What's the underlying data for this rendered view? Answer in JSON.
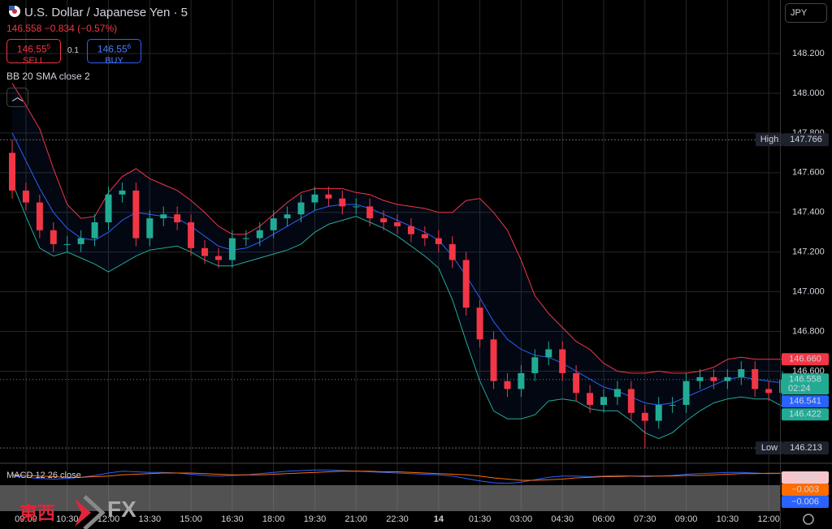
{
  "header": {
    "symbol": "U.S. Dollar / Japanese Yen · 5",
    "last": "146.558",
    "change": "−0.834 (−0.57%)",
    "sell": {
      "price": "146.55",
      "pip": "5",
      "label": "SELL"
    },
    "spread": "0.1",
    "buy": {
      "price": "146.55",
      "pip": "6",
      "label": "BUY"
    },
    "indicator": "BB 20 SMA close 2",
    "currency": "JPY"
  },
  "chart_data": {
    "type": "candlestick",
    "categories": [
      null,
      "09:00",
      null,
      null,
      "10:30",
      null,
      null,
      "12:00",
      null,
      null,
      "13:30",
      null,
      null,
      "15:00",
      null,
      null,
      "16:30",
      null,
      null,
      "18:00",
      null,
      null,
      "19:30",
      null,
      null,
      "21:00",
      null,
      null,
      "22:30",
      null,
      null,
      "14",
      null,
      null,
      "01:30",
      null,
      null,
      "03:00",
      null,
      null,
      "04:30",
      null,
      null,
      "06:00",
      null,
      null,
      "07:30",
      null,
      null,
      "09:00",
      null,
      null,
      "10:30",
      null,
      null,
      "12:00",
      null
    ],
    "open": [
      147.7,
      147.51,
      147.45,
      147.31,
      147.24,
      147.24,
      147.27,
      147.35,
      147.49,
      147.51,
      147.27,
      147.37,
      147.39,
      147.35,
      147.22,
      147.18,
      147.16,
      147.27,
      147.27,
      147.31,
      147.37,
      147.39,
      147.45,
      147.49,
      147.47,
      147.43,
      147.43,
      147.37,
      147.35,
      147.33,
      147.29,
      147.27,
      147.24,
      147.16,
      146.92,
      146.76,
      146.55,
      146.51,
      146.59,
      146.67,
      146.71,
      146.59,
      146.49,
      146.43,
      146.47,
      146.51,
      146.39,
      146.35,
      146.43,
      146.43,
      146.55,
      146.57,
      146.55,
      146.57,
      146.61,
      146.51,
      146.49
    ],
    "high": [
      147.766,
      147.55,
      147.49,
      147.35,
      147.28,
      147.31,
      147.39,
      147.53,
      147.55,
      147.55,
      147.41,
      147.43,
      147.43,
      147.39,
      147.26,
      147.22,
      147.31,
      147.31,
      147.35,
      147.41,
      147.43,
      147.49,
      147.53,
      147.53,
      147.51,
      147.47,
      147.47,
      147.41,
      147.39,
      147.37,
      147.33,
      147.31,
      147.28,
      147.2,
      146.96,
      146.8,
      146.59,
      146.63,
      146.71,
      146.75,
      146.75,
      146.63,
      146.53,
      146.51,
      146.55,
      146.55,
      146.43,
      146.47,
      146.47,
      146.59,
      146.61,
      146.61,
      146.61,
      146.65,
      146.65,
      146.55,
      146.6
    ],
    "low": [
      147.47,
      147.41,
      147.27,
      147.2,
      147.2,
      147.2,
      147.23,
      147.31,
      147.45,
      147.23,
      147.23,
      147.33,
      147.31,
      147.18,
      147.14,
      147.12,
      147.12,
      147.23,
      147.23,
      147.27,
      147.33,
      147.35,
      147.41,
      147.43,
      147.39,
      147.39,
      147.33,
      147.31,
      147.29,
      147.25,
      147.23,
      147.2,
      147.12,
      146.88,
      146.72,
      146.51,
      146.47,
      146.47,
      146.55,
      146.63,
      146.55,
      146.45,
      146.39,
      146.39,
      146.43,
      146.35,
      146.213,
      146.31,
      146.39,
      146.39,
      146.51,
      146.51,
      146.51,
      146.53,
      146.47,
      146.45,
      146.45
    ],
    "close": [
      147.51,
      147.45,
      147.31,
      147.24,
      147.24,
      147.27,
      147.35,
      147.49,
      147.51,
      147.27,
      147.37,
      147.39,
      147.35,
      147.22,
      147.18,
      147.16,
      147.27,
      147.27,
      147.31,
      147.37,
      147.39,
      147.45,
      147.49,
      147.47,
      147.43,
      147.43,
      147.37,
      147.35,
      147.33,
      147.29,
      147.27,
      147.24,
      147.16,
      146.92,
      146.76,
      146.55,
      146.51,
      146.59,
      146.67,
      146.71,
      146.59,
      146.49,
      146.43,
      146.47,
      146.51,
      146.39,
      146.35,
      146.43,
      146.43,
      146.55,
      146.57,
      146.55,
      146.57,
      146.61,
      146.51,
      146.49,
      146.558
    ],
    "up_color": "#22ab94",
    "down_color": "#f23645",
    "bollinger": {
      "upper": [
        148.05,
        147.94,
        147.82,
        147.62,
        147.44,
        147.37,
        147.38,
        147.5,
        147.58,
        147.62,
        147.57,
        147.54,
        147.51,
        147.46,
        147.4,
        147.33,
        147.29,
        147.29,
        147.33,
        147.39,
        147.45,
        147.5,
        147.52,
        147.52,
        147.52,
        147.5,
        147.49,
        147.46,
        147.44,
        147.43,
        147.42,
        147.4,
        147.4,
        147.46,
        147.47,
        147.4,
        147.31,
        147.16,
        146.98,
        146.89,
        146.82,
        146.75,
        146.71,
        146.64,
        146.6,
        146.59,
        146.59,
        146.6,
        146.59,
        146.59,
        146.6,
        146.62,
        146.66,
        146.67,
        146.66,
        146.66,
        146.66
      ],
      "basis": [
        147.8,
        147.66,
        147.52,
        147.4,
        147.32,
        147.27,
        147.26,
        147.3,
        147.36,
        147.4,
        147.39,
        147.38,
        147.37,
        147.33,
        147.28,
        147.23,
        147.21,
        147.22,
        147.25,
        147.29,
        147.33,
        147.37,
        147.41,
        147.43,
        147.44,
        147.44,
        147.42,
        147.39,
        147.36,
        147.33,
        147.3,
        147.26,
        147.18,
        147.08,
        146.97,
        146.85,
        146.76,
        146.71,
        146.68,
        146.67,
        146.64,
        146.6,
        146.56,
        146.52,
        146.5,
        146.47,
        146.44,
        146.43,
        146.44,
        146.47,
        146.5,
        146.53,
        146.56,
        146.57,
        146.56,
        146.55,
        146.541
      ],
      "lower": [
        147.55,
        147.38,
        147.22,
        147.18,
        147.2,
        147.17,
        147.14,
        147.1,
        147.14,
        147.18,
        147.21,
        147.22,
        147.23,
        147.2,
        147.16,
        147.13,
        147.13,
        147.15,
        147.17,
        147.19,
        147.21,
        147.24,
        147.3,
        147.34,
        147.36,
        147.38,
        147.35,
        147.32,
        147.28,
        147.23,
        147.18,
        147.12,
        146.96,
        146.75,
        146.55,
        146.4,
        146.36,
        146.36,
        146.38,
        146.45,
        146.46,
        146.45,
        146.41,
        146.4,
        146.4,
        146.35,
        146.29,
        146.26,
        146.29,
        146.35,
        146.4,
        146.44,
        146.46,
        146.47,
        146.46,
        146.46,
        146.422
      ],
      "upper_color": "#f23645",
      "basis_color": "#2962ff",
      "lower_color": "#22ab94"
    },
    "ylim": [
      146.14,
      148.47
    ],
    "yticks": [
      {
        "value": 146.6,
        "label": "146.600"
      },
      {
        "value": 146.8,
        "label": "146.800"
      },
      {
        "value": 147.0,
        "label": "147.000"
      },
      {
        "value": 147.2,
        "label": "147.200"
      },
      {
        "value": 147.4,
        "label": "147.400"
      },
      {
        "value": 147.6,
        "label": "147.600"
      },
      {
        "value": 147.8,
        "label": "147.800"
      },
      {
        "value": 148.0,
        "label": "148.000"
      },
      {
        "value": 148.2,
        "label": "148.200"
      }
    ],
    "grid": true,
    "high_marker": {
      "label": "High",
      "value": 147.766,
      "value_label": "147.766"
    },
    "low_marker": {
      "label": "Low",
      "value": 146.213,
      "value_label": "146.213"
    },
    "price_badges": [
      {
        "value": 146.66,
        "label": "146.660",
        "color": "#f23645"
      },
      {
        "value": 146.558,
        "label": "146.558",
        "color": "#22ab94",
        "countdown": "02:24"
      },
      {
        "value": 146.541,
        "label": "146.541",
        "color": "#2962ff"
      },
      {
        "value": 146.422,
        "label": "146.422",
        "color": "#22ab94"
      }
    ],
    "macd": {
      "title": "MACD 12 26 close",
      "ylim": [
        -0.2,
        0.12
      ],
      "macd": [
        -0.05,
        -0.07,
        -0.09,
        -0.1,
        -0.09,
        -0.07,
        -0.04,
        0.0,
        0.03,
        0.02,
        0.01,
        0.01,
        0.0,
        -0.02,
        -0.04,
        -0.05,
        -0.04,
        -0.03,
        -0.01,
        0.01,
        0.03,
        0.04,
        0.05,
        0.05,
        0.04,
        0.03,
        0.02,
        0.01,
        0.0,
        -0.01,
        -0.02,
        -0.03,
        -0.05,
        -0.09,
        -0.13,
        -0.16,
        -0.17,
        -0.15,
        -0.11,
        -0.07,
        -0.05,
        -0.05,
        -0.06,
        -0.05,
        -0.04,
        -0.05,
        -0.06,
        -0.05,
        -0.04,
        -0.02,
        -0.01,
        0.0,
        0.01,
        0.01,
        0.0,
        -0.01,
        -0.006
      ],
      "signal": [
        -0.03,
        -0.04,
        -0.05,
        -0.06,
        -0.07,
        -0.07,
        -0.06,
        -0.05,
        -0.03,
        -0.02,
        -0.01,
        0.0,
        0.0,
        0.0,
        -0.01,
        -0.02,
        -0.03,
        -0.03,
        -0.03,
        -0.02,
        -0.01,
        0.0,
        0.01,
        0.02,
        0.03,
        0.03,
        0.03,
        0.02,
        0.02,
        0.01,
        0.0,
        -0.01,
        -0.02,
        -0.03,
        -0.05,
        -0.08,
        -0.1,
        -0.12,
        -0.12,
        -0.11,
        -0.1,
        -0.08,
        -0.07,
        -0.06,
        -0.06,
        -0.05,
        -0.05,
        -0.05,
        -0.05,
        -0.04,
        -0.04,
        -0.03,
        -0.02,
        -0.01,
        -0.01,
        -0.003,
        -0.003
      ],
      "macd_color": "#2962ff",
      "signal_color": "#ff6d00",
      "badges": [
        {
          "value": -0.002,
          "label": "−0.002",
          "color": "#f7c6cc"
        },
        {
          "value": -0.003,
          "label": "−0.003",
          "color": "#ff6d00"
        },
        {
          "value": -0.006,
          "label": "−0.006",
          "color": "#2962ff"
        }
      ]
    }
  },
  "logo": {
    "left": "東西",
    "right": "FX"
  }
}
